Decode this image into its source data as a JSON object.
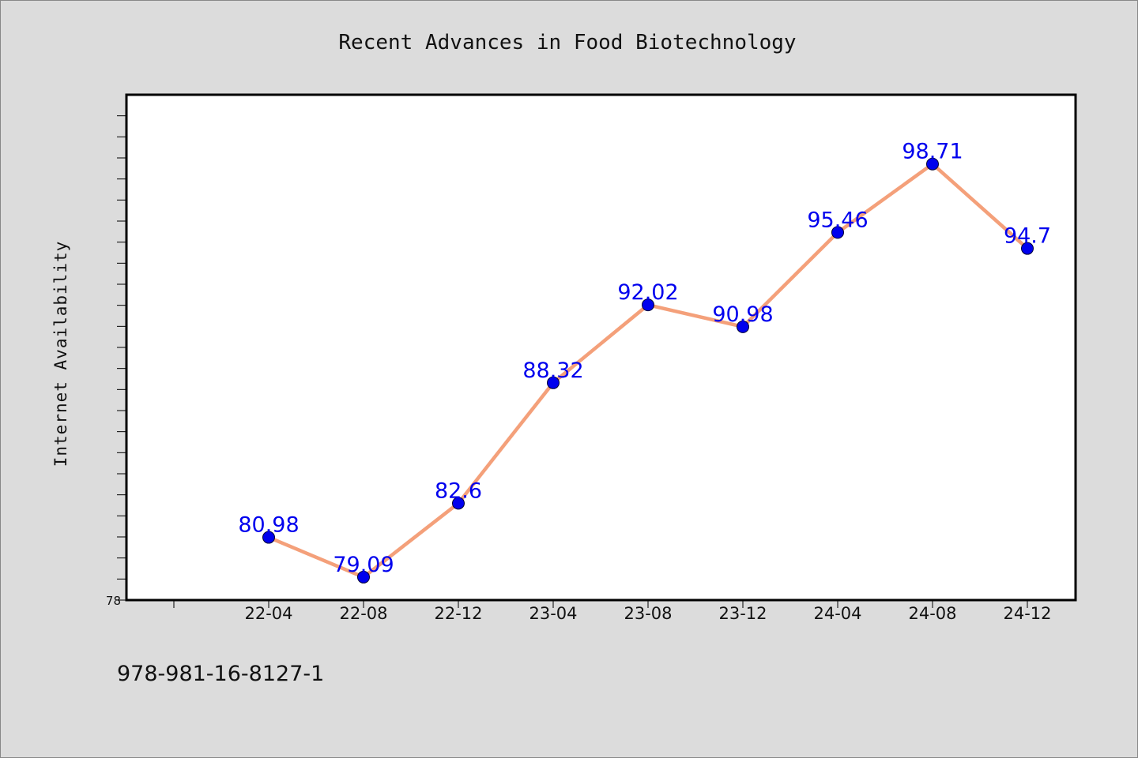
{
  "chart_data": {
    "type": "line",
    "title": "Recent Advances in Food Biotechnology",
    "xlabel": "",
    "ylabel": "Internet Availability",
    "categories": [
      "22-04",
      "22-08",
      "22-12",
      "23-04",
      "23-08",
      "23-12",
      "24-04",
      "24-08",
      "24-12"
    ],
    "series": [
      {
        "values": [
          80.98,
          79.09,
          82.6,
          88.32,
          92.02,
          90.98,
          95.46,
          98.71,
          94.7
        ],
        "labels": [
          "80.98",
          "79.09",
          "82.6",
          "88.32",
          "92.02",
          "90.98",
          "95.46",
          "98.71",
          "94.7"
        ]
      }
    ],
    "ylim": [
      78,
      102
    ],
    "y_tick_labels": [
      "78"
    ],
    "grid": false,
    "legend": "none",
    "colors": {
      "line": "#f4a07a",
      "marker": "#0000ee",
      "data_label": "#0000ee",
      "background": "#dcdcdc",
      "plot_background": "#ffffff"
    }
  },
  "footer": {
    "text": "978-981-16-8127-1"
  }
}
